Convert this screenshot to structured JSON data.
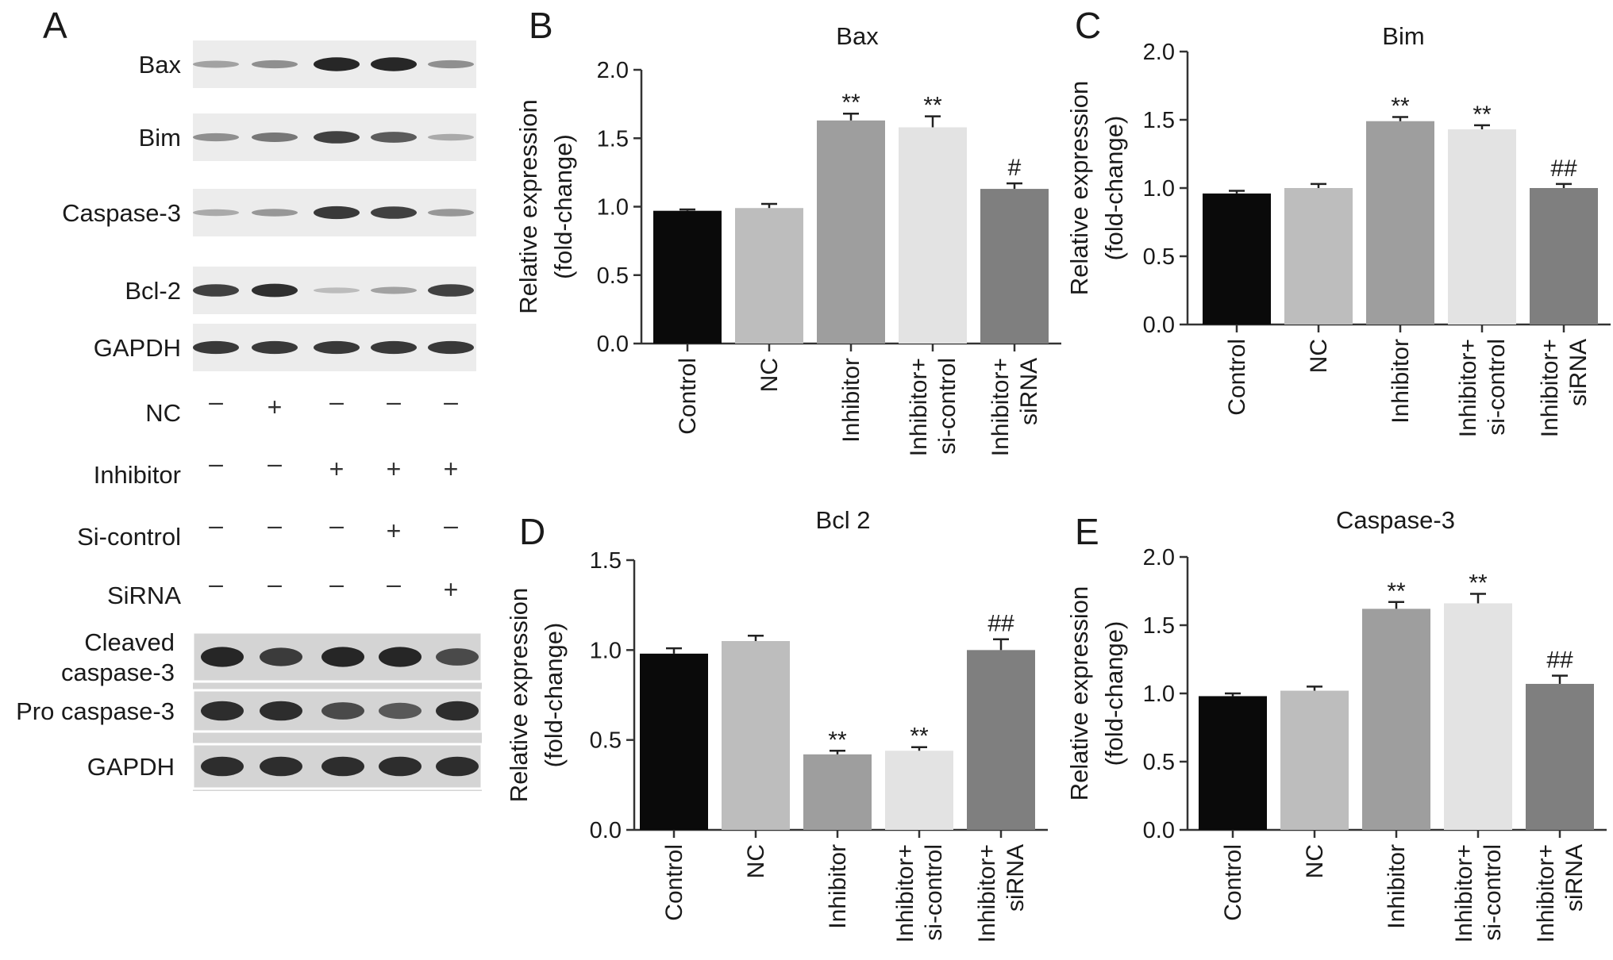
{
  "panel_a": {
    "letter": "A",
    "blot_rows": [
      {
        "label": "Bax",
        "intensity": [
          0.25,
          0.35,
          0.95,
          0.95,
          0.35
        ]
      },
      {
        "label": "Bim",
        "intensity": [
          0.35,
          0.5,
          0.8,
          0.65,
          0.2
        ]
      },
      {
        "label": "Caspase-3",
        "intensity": [
          0.2,
          0.3,
          0.85,
          0.8,
          0.3
        ]
      },
      {
        "label": "Bcl-2",
        "intensity": [
          0.8,
          0.9,
          0.1,
          0.25,
          0.8
        ]
      },
      {
        "label": "GAPDH",
        "intensity": [
          0.85,
          0.85,
          0.85,
          0.85,
          0.85
        ]
      }
    ],
    "treatments": [
      {
        "label": "NC",
        "signs": [
          "–",
          "+",
          "–",
          "–",
          "–"
        ]
      },
      {
        "label": "Inhibitor",
        "signs": [
          "–",
          "–",
          "+",
          "+",
          "+"
        ]
      },
      {
        "label": "Si-control",
        "signs": [
          "–",
          "–",
          "–",
          "+",
          "–"
        ]
      },
      {
        "label": "SiRNA",
        "signs": [
          "–",
          "–",
          "–",
          "–",
          "+"
        ]
      }
    ],
    "lower_blots": [
      {
        "label_lines": [
          "Cleaved",
          "caspase-3"
        ],
        "intensity": [
          0.95,
          0.8,
          0.95,
          0.95,
          0.7
        ]
      },
      {
        "label_lines": [
          "Pro caspase-3"
        ],
        "intensity": [
          0.9,
          0.9,
          0.7,
          0.6,
          0.9
        ]
      },
      {
        "label_lines": [
          "GAPDH"
        ],
        "intensity": [
          0.9,
          0.9,
          0.9,
          0.9,
          0.9
        ]
      }
    ]
  },
  "colors": {
    "bars": [
      "#0a0a0a",
      "#bdbdbd",
      "#9e9e9e",
      "#e3e3e3",
      "#7f7f7f"
    ],
    "axis": "#333333",
    "blot_background": "#d4d4d4",
    "band": "#1e1e1e"
  },
  "chart_data": [
    {
      "panel": "B",
      "type": "bar",
      "title": "Bax",
      "ylabel": [
        "Relative expression",
        "(fold-change)"
      ],
      "ylim": [
        0,
        2.0
      ],
      "yticks": [
        "0.0",
        "0.5",
        "1.0",
        "1.5",
        "2.0"
      ],
      "categories": [
        [
          "Control"
        ],
        [
          "NC"
        ],
        [
          "Inhibitor"
        ],
        [
          "Inhibitor+",
          "si-control"
        ],
        [
          "Inhibitor+",
          "siRNA"
        ]
      ],
      "values": [
        0.97,
        0.99,
        1.63,
        1.58,
        1.13
      ],
      "errors": [
        0.01,
        0.03,
        0.05,
        0.08,
        0.04
      ],
      "significance": [
        "",
        "",
        "**",
        "**",
        "#"
      ]
    },
    {
      "panel": "C",
      "type": "bar",
      "title": "Bim",
      "ylabel": [
        "Relative expression",
        "(fold-change)"
      ],
      "ylim": [
        0,
        2.0
      ],
      "yticks": [
        "0.0",
        "0.5",
        "1.0",
        "1.5",
        "2.0"
      ],
      "categories": [
        [
          "Control"
        ],
        [
          "NC"
        ],
        [
          "Inhibitor"
        ],
        [
          "Inhibitor+",
          "si-control"
        ],
        [
          "Inhibitor+",
          "siRNA"
        ]
      ],
      "values": [
        0.96,
        1.0,
        1.49,
        1.43,
        1.0
      ],
      "errors": [
        0.02,
        0.03,
        0.03,
        0.03,
        0.03
      ],
      "significance": [
        "",
        "",
        "**",
        "**",
        "##"
      ]
    },
    {
      "panel": "D",
      "type": "bar",
      "title": "Bcl 2",
      "ylabel": [
        "Relative expression",
        "(fold-change)"
      ],
      "ylim": [
        0,
        1.5
      ],
      "yticks": [
        "0.0",
        "0.5",
        "1.0",
        "1.5"
      ],
      "categories": [
        [
          "Control"
        ],
        [
          "NC"
        ],
        [
          "Inhibitor"
        ],
        [
          "Inhibitor+",
          "si-control"
        ],
        [
          "Inhibitor+",
          "siRNA"
        ]
      ],
      "values": [
        0.98,
        1.05,
        0.42,
        0.44,
        1.0
      ],
      "errors": [
        0.03,
        0.03,
        0.02,
        0.02,
        0.06
      ],
      "significance": [
        "",
        "",
        "**",
        "**",
        "##"
      ]
    },
    {
      "panel": "E",
      "type": "bar",
      "title": "Caspase-3",
      "ylabel": [
        "Relative expression",
        "(fold-change)"
      ],
      "ylim": [
        0,
        2.0
      ],
      "yticks": [
        "0.0",
        "0.5",
        "1.0",
        "1.5",
        "2.0"
      ],
      "categories": [
        [
          "Control"
        ],
        [
          "NC"
        ],
        [
          "Inhibitor"
        ],
        [
          "Inhibitor+",
          "si-control"
        ],
        [
          "Inhibitor+",
          "siRNA"
        ]
      ],
      "values": [
        0.98,
        1.02,
        1.62,
        1.66,
        1.07
      ],
      "errors": [
        0.02,
        0.03,
        0.05,
        0.07,
        0.06
      ],
      "significance": [
        "",
        "",
        "**",
        "**",
        "##"
      ]
    }
  ]
}
